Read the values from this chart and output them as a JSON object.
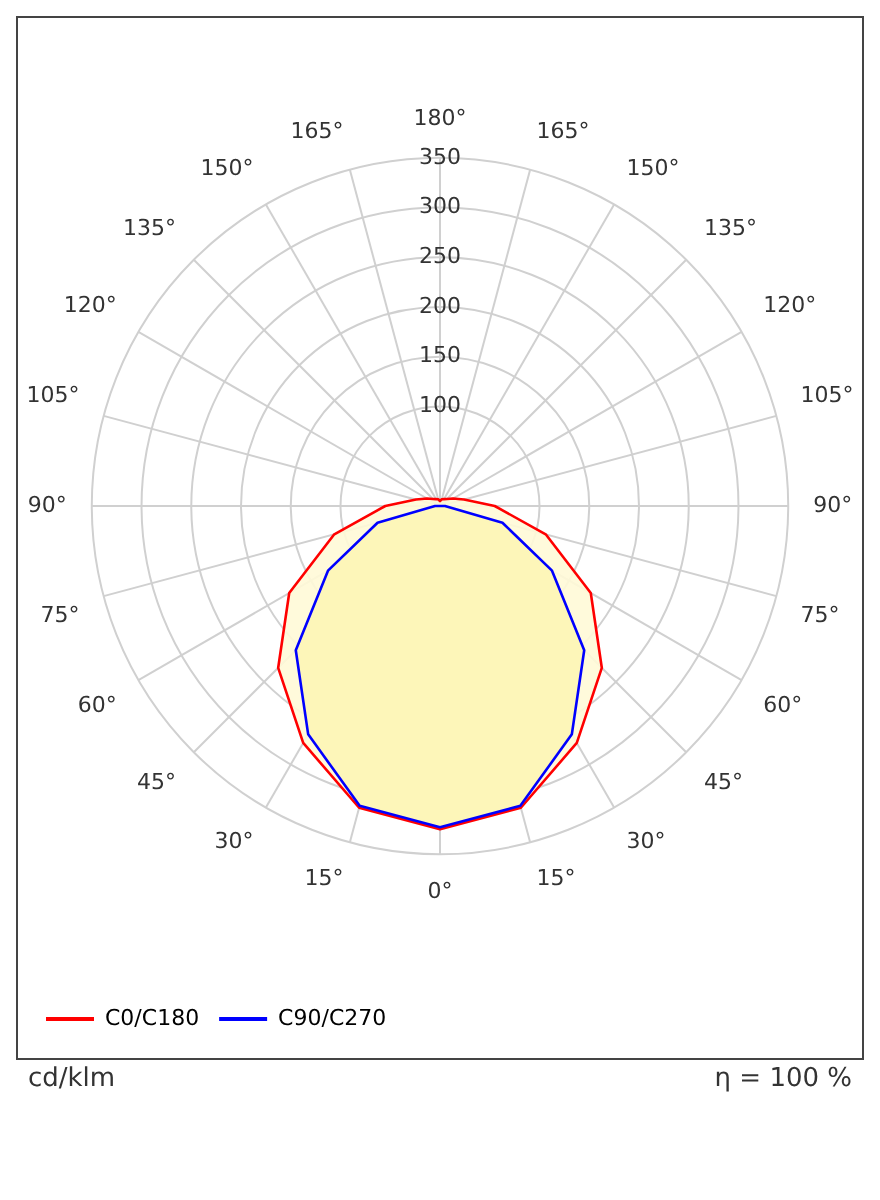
{
  "chart_data": {
    "type": "radar",
    "categories": [
      "180°",
      "165°",
      "150°",
      "135°",
      "120°",
      "105°",
      "90°",
      "75°",
      "60°",
      "45°",
      "30°",
      "15°",
      "0°",
      "15°",
      "30°",
      "45°",
      "60°",
      "75°",
      "90°",
      "105°",
      "120°",
      "135°",
      "150°",
      "165°"
    ],
    "series": [
      {
        "name": "C0/C180",
        "color": "#ff0000",
        "values": [
          5,
          7,
          8,
          10,
          15,
          25,
          55,
          110,
          175,
          230,
          275,
          314,
          325,
          314,
          275,
          230,
          175,
          110,
          55,
          25,
          15,
          10,
          8,
          7
        ]
      },
      {
        "name": "C90/C270",
        "color": "#0000ff",
        "values": [
          0,
          0,
          0,
          0,
          0,
          0,
          5,
          65,
          130,
          205,
          265,
          312,
          323,
          312,
          265,
          205,
          130,
          65,
          5,
          0,
          0,
          0,
          0,
          0
        ]
      }
    ],
    "ylim": [
      0,
      350
    ],
    "yticks": [
      100,
      150,
      200,
      250,
      300,
      350
    ],
    "grid": true,
    "legend": "bottom left",
    "line_style": "solid",
    "marker": "none",
    "annotations": [
      "cd/klm",
      "η = 100 %"
    ]
  }
}
